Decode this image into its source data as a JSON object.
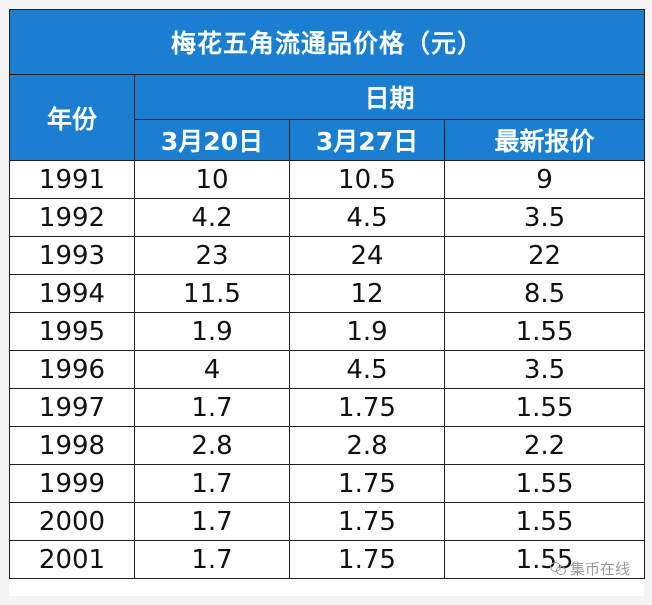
{
  "table": {
    "title": "梅花五角流通品价格（元）",
    "year_header": "年份",
    "date_header": "日期",
    "columns": [
      "3月20日",
      "3月27日",
      "最新报价"
    ],
    "rows": [
      {
        "year": "1991",
        "v1": "10",
        "v2": "10.5",
        "v3": "9"
      },
      {
        "year": "1992",
        "v1": "4.2",
        "v2": "4.5",
        "v3": "3.5"
      },
      {
        "year": "1993",
        "v1": "23",
        "v2": "24",
        "v3": "22"
      },
      {
        "year": "1994",
        "v1": "11.5",
        "v2": "12",
        "v3": "8.5"
      },
      {
        "year": "1995",
        "v1": "1.9",
        "v2": "1.9",
        "v3": "1.55"
      },
      {
        "year": "1996",
        "v1": "4",
        "v2": "4.5",
        "v3": "3.5"
      },
      {
        "year": "1997",
        "v1": "1.7",
        "v2": "1.75",
        "v3": "1.55"
      },
      {
        "year": "1998",
        "v1": "2.8",
        "v2": "2.8",
        "v3": "2.2"
      },
      {
        "year": "1999",
        "v1": "1.7",
        "v2": "1.75",
        "v3": "1.55"
      },
      {
        "year": "2000",
        "v1": "1.7",
        "v2": "1.75",
        "v3": "1.55"
      },
      {
        "year": "2001",
        "v1": "1.7",
        "v2": "1.75",
        "v3": "1.55"
      }
    ]
  },
  "watermark": {
    "icon": "wechat-icon",
    "text": "集币在线"
  },
  "colors": {
    "header_bg": "#1a7fd1",
    "header_text": "#ffffff",
    "border": "#1f1f1f"
  }
}
